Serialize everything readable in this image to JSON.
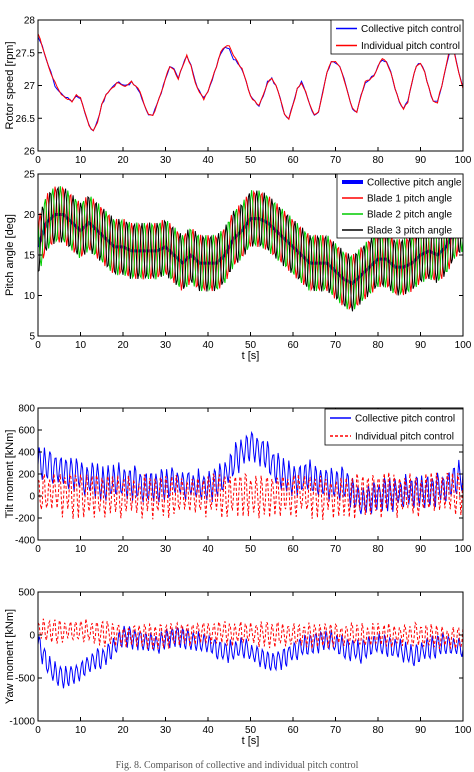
{
  "chart_data": [
    {
      "type": "line",
      "ylabel": "Rotor speed [rpm]",
      "xlabel": "",
      "xlim": [
        0,
        100
      ],
      "ylim": [
        26,
        28
      ],
      "xticks": [
        "0",
        "10",
        "20",
        "30",
        "40",
        "50",
        "60",
        "70",
        "80",
        "90",
        "100"
      ],
      "yticks": [
        "26",
        "26.5",
        "27",
        "27.5",
        "28"
      ],
      "legend_position": "top-right",
      "series": [
        {
          "name": "Collective pitch control",
          "color": "#0000ff",
          "x": [
            0,
            1,
            2,
            3,
            4,
            5,
            6,
            7,
            8,
            9,
            10,
            11,
            12,
            13,
            14,
            15,
            16,
            17,
            18,
            19,
            20,
            21,
            22,
            23,
            24,
            25,
            26,
            27,
            28,
            29,
            30,
            31,
            32,
            33,
            34,
            35,
            36,
            37,
            38,
            39,
            40,
            41,
            42,
            43,
            44,
            45,
            46,
            47,
            48,
            49,
            50,
            51,
            52,
            53,
            54,
            55,
            56,
            57,
            58,
            59,
            60,
            61,
            62,
            63,
            64,
            65,
            66,
            67,
            68,
            69,
            70,
            71,
            72,
            73,
            74,
            75,
            76,
            77,
            78,
            79,
            80,
            81,
            82,
            83,
            84,
            85,
            86,
            87,
            88,
            89,
            90,
            91,
            92,
            93,
            94,
            95,
            96,
            97,
            98,
            99,
            100
          ],
          "values": [
            27.75,
            27.6,
            27.4,
            27.2,
            27.0,
            26.9,
            26.85,
            26.8,
            26.75,
            26.85,
            26.8,
            26.6,
            26.4,
            26.3,
            26.45,
            26.7,
            26.85,
            26.95,
            27.0,
            27.05,
            27.0,
            27.0,
            27.05,
            27.0,
            26.9,
            26.7,
            26.55,
            26.55,
            26.7,
            26.9,
            27.1,
            27.3,
            27.25,
            27.1,
            27.3,
            27.45,
            27.3,
            27.05,
            26.9,
            26.8,
            26.9,
            27.1,
            27.3,
            27.5,
            27.6,
            27.55,
            27.4,
            27.35,
            27.25,
            27.05,
            26.85,
            26.75,
            26.7,
            26.85,
            27.05,
            27.1,
            27.0,
            26.8,
            26.55,
            26.5,
            26.7,
            26.95,
            27.05,
            26.9,
            26.7,
            26.55,
            26.6,
            26.9,
            27.2,
            27.35,
            27.35,
            27.3,
            27.1,
            26.85,
            26.65,
            26.6,
            26.85,
            27.05,
            27.1,
            27.15,
            27.3,
            27.4,
            27.35,
            27.2,
            26.95,
            26.75,
            26.65,
            26.75,
            27.05,
            27.3,
            27.35,
            27.2,
            26.95,
            26.75,
            26.75,
            27.0,
            27.3,
            27.55,
            27.5,
            27.2,
            26.95
          ]
        },
        {
          "name": "Individual pitch control",
          "color": "#ff0000",
          "x": [
            0,
            1,
            2,
            3,
            4,
            5,
            6,
            7,
            8,
            9,
            10,
            11,
            12,
            13,
            14,
            15,
            16,
            17,
            18,
            19,
            20,
            21,
            22,
            23,
            24,
            25,
            26,
            27,
            28,
            29,
            30,
            31,
            32,
            33,
            34,
            35,
            36,
            37,
            38,
            39,
            40,
            41,
            42,
            43,
            44,
            45,
            46,
            47,
            48,
            49,
            50,
            51,
            52,
            53,
            54,
            55,
            56,
            57,
            58,
            59,
            60,
            61,
            62,
            63,
            64,
            65,
            66,
            67,
            68,
            69,
            70,
            71,
            72,
            73,
            74,
            75,
            76,
            77,
            78,
            79,
            80,
            81,
            82,
            83,
            84,
            85,
            86,
            87,
            88,
            89,
            90,
            91,
            92,
            93,
            94,
            95,
            96,
            97,
            98,
            99,
            100
          ],
          "values": [
            27.8,
            27.6,
            27.4,
            27.2,
            27.05,
            26.9,
            26.85,
            26.8,
            26.75,
            26.85,
            26.8,
            26.6,
            26.4,
            26.3,
            26.45,
            26.7,
            26.85,
            26.95,
            27.0,
            27.05,
            27.0,
            27.0,
            27.05,
            27.0,
            26.9,
            26.7,
            26.55,
            26.55,
            26.7,
            26.9,
            27.1,
            27.3,
            27.25,
            27.1,
            27.3,
            27.45,
            27.3,
            27.05,
            26.9,
            26.8,
            26.9,
            27.1,
            27.3,
            27.5,
            27.6,
            27.6,
            27.45,
            27.35,
            27.25,
            27.05,
            26.85,
            26.75,
            26.7,
            26.85,
            27.05,
            27.1,
            27.0,
            26.8,
            26.55,
            26.5,
            26.7,
            26.95,
            27.05,
            26.9,
            26.7,
            26.55,
            26.6,
            26.9,
            27.2,
            27.35,
            27.35,
            27.3,
            27.1,
            26.85,
            26.65,
            26.6,
            26.85,
            27.05,
            27.1,
            27.15,
            27.3,
            27.4,
            27.35,
            27.2,
            26.95,
            26.75,
            26.65,
            26.75,
            27.05,
            27.3,
            27.35,
            27.2,
            26.95,
            26.75,
            26.75,
            27.0,
            27.3,
            27.6,
            27.5,
            27.2,
            26.95
          ]
        }
      ]
    },
    {
      "type": "line",
      "ylabel": "Pitch angle [deg]",
      "xlabel": "t [s]",
      "xlim": [
        0,
        100
      ],
      "ylim": [
        5,
        25
      ],
      "xticks": [
        "0",
        "10",
        "20",
        "30",
        "40",
        "50",
        "60",
        "70",
        "80",
        "90",
        "100"
      ],
      "yticks": [
        "5",
        "10",
        "15",
        "20",
        "25"
      ],
      "legend_position": "top-right",
      "series": [
        {
          "name": "Collective pitch angle",
          "color": "#0000ff",
          "x": [
            0,
            2,
            4,
            6,
            8,
            10,
            12,
            14,
            16,
            18,
            20,
            22,
            24,
            26,
            28,
            30,
            32,
            34,
            36,
            38,
            40,
            42,
            44,
            46,
            48,
            50,
            52,
            54,
            56,
            58,
            60,
            62,
            64,
            66,
            68,
            70,
            72,
            74,
            76,
            78,
            80,
            82,
            84,
            86,
            88,
            90,
            92,
            94,
            96,
            98,
            100
          ],
          "values": [
            16,
            19,
            20,
            20,
            19,
            18,
            19,
            18,
            17,
            16,
            16,
            15.5,
            15.5,
            15.5,
            15.5,
            16,
            15,
            14,
            15,
            14,
            14,
            14,
            15,
            17,
            18,
            19.5,
            19.5,
            19,
            18,
            17,
            16,
            15,
            14,
            14,
            14,
            13,
            12,
            11.5,
            12.5,
            13.5,
            14.5,
            14.5,
            13.5,
            13.5,
            14,
            15,
            15.5,
            15,
            16,
            18,
            19
          ]
        },
        {
          "name": "Blade 1 pitch angle",
          "color": "#ff0000",
          "x": [],
          "values": [],
          "oscillation": {
            "base_series": 0,
            "amplitude": 3.5,
            "period": 1.8,
            "phase": 0
          }
        },
        {
          "name": "Blade 2 pitch angle",
          "color": "#00cc00",
          "x": [],
          "values": [],
          "oscillation": {
            "base_series": 0,
            "amplitude": 3.5,
            "period": 1.8,
            "phase": 2.094
          }
        },
        {
          "name": "Blade 3 pitch angle",
          "color": "#000000",
          "x": [],
          "values": [],
          "oscillation": {
            "base_series": 0,
            "amplitude": 3.5,
            "period": 1.8,
            "phase": 4.189
          }
        }
      ]
    },
    {
      "type": "line",
      "ylabel": "Tilt moment [kNm]",
      "xlabel": "",
      "xlim": [
        0,
        100
      ],
      "ylim": [
        -400,
        800
      ],
      "xticks": [
        "0",
        "10",
        "20",
        "30",
        "40",
        "50",
        "60",
        "70",
        "80",
        "90",
        "100"
      ],
      "yticks": [
        "-400",
        "-200",
        "0",
        "200",
        "400",
        "600",
        "800"
      ],
      "legend_position": "top-right",
      "series": [
        {
          "name": "Collective pitch control",
          "color": "#0000ff",
          "x": [
            0,
            4,
            8,
            12,
            16,
            20,
            24,
            28,
            32,
            36,
            40,
            44,
            48,
            50,
            52,
            56,
            60,
            64,
            68,
            72,
            76,
            80,
            84,
            88,
            92,
            96,
            100
          ],
          "values": [
            300,
            250,
            200,
            150,
            120,
            150,
            100,
            80,
            120,
            100,
            80,
            200,
            400,
            480,
            420,
            250,
            150,
            180,
            100,
            120,
            -50,
            0,
            20,
            50,
            60,
            80,
            200
          ],
          "noise_amplitude": 180
        },
        {
          "name": "Individual pitch control",
          "color": "#ff0000",
          "dash": "3,2",
          "x": [
            0,
            10,
            20,
            30,
            40,
            50,
            60,
            70,
            80,
            90,
            100
          ],
          "values": [
            20,
            10,
            0,
            0,
            10,
            20,
            10,
            0,
            20,
            20,
            40
          ],
          "noise_amplitude": 230
        }
      ]
    },
    {
      "type": "line",
      "ylabel": "Yaw moment [kNm]",
      "xlabel": "t [s]",
      "xlim": [
        0,
        100
      ],
      "ylim": [
        -1000,
        500
      ],
      "xticks": [
        "0",
        "10",
        "20",
        "30",
        "40",
        "50",
        "60",
        "70",
        "80",
        "90",
        "100"
      ],
      "yticks": [
        "-1000",
        "-500",
        "0",
        "500"
      ],
      "legend_position": "none",
      "series": [
        {
          "name": "Collective pitch control",
          "color": "#0000ff",
          "x": [
            0,
            3,
            6,
            9,
            12,
            15,
            18,
            20,
            24,
            28,
            32,
            36,
            40,
            44,
            48,
            52,
            56,
            60,
            64,
            68,
            72,
            76,
            80,
            84,
            88,
            92,
            96,
            100
          ],
          "values": [
            -100,
            -400,
            -500,
            -450,
            -350,
            -250,
            -150,
            0,
            -50,
            -100,
            0,
            -50,
            -100,
            -200,
            -150,
            -250,
            -300,
            -200,
            -100,
            -50,
            -150,
            -200,
            -100,
            -150,
            -250,
            -150,
            -100,
            -150
          ],
          "noise_amplitude": 150
        },
        {
          "name": "Individual pitch control",
          "color": "#ff0000",
          "dash": "3,2",
          "x": [
            0,
            10,
            20,
            30,
            40,
            50,
            60,
            70,
            80,
            90,
            100
          ],
          "values": [
            50,
            50,
            0,
            0,
            30,
            20,
            0,
            0,
            0,
            0,
            -50
          ],
          "noise_amplitude": 170
        }
      ]
    }
  ],
  "caption": "Fig. 8. Comparison of collective and individual pitch control"
}
